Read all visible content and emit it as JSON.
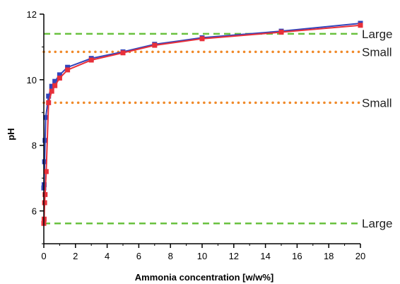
{
  "chart_data": {
    "type": "line",
    "title": "",
    "xlabel": "Ammonia concentration [w/w%]",
    "ylabel": "pH",
    "xlim": [
      0,
      20
    ],
    "ylim": [
      5,
      12
    ],
    "x_ticks": [
      "0",
      "2",
      "4",
      "6",
      "8",
      "10",
      "12",
      "14",
      "16",
      "18",
      "20"
    ],
    "y_ticks": [
      "6",
      "8",
      "10",
      "12"
    ],
    "grid": false,
    "series": [
      {
        "color": "#3344bb",
        "marker": "square",
        "points": [
          [
            0.0,
            6.7
          ],
          [
            0.02,
            6.8
          ],
          [
            0.05,
            7.5
          ],
          [
            0.08,
            8.15
          ],
          [
            0.12,
            8.85
          ],
          [
            0.3,
            9.5
          ],
          [
            0.5,
            9.8
          ],
          [
            0.7,
            9.95
          ],
          [
            1.0,
            10.15
          ],
          [
            1.5,
            10.38
          ],
          [
            3.0,
            10.65
          ],
          [
            5.0,
            10.85
          ],
          [
            7.0,
            11.08
          ],
          [
            10.0,
            11.28
          ],
          [
            15.0,
            11.48
          ],
          [
            20.0,
            11.72
          ]
        ]
      },
      {
        "color": "#e8303a",
        "marker": "square",
        "points": [
          [
            0.0,
            5.62
          ],
          [
            0.02,
            5.75
          ],
          [
            0.05,
            6.25
          ],
          [
            0.08,
            6.5
          ],
          [
            0.15,
            7.2
          ],
          [
            0.3,
            9.3
          ],
          [
            0.5,
            9.65
          ],
          [
            0.7,
            9.82
          ],
          [
            1.0,
            10.05
          ],
          [
            1.5,
            10.3
          ],
          [
            3.0,
            10.6
          ],
          [
            5.0,
            10.82
          ],
          [
            7.0,
            11.05
          ],
          [
            10.0,
            11.25
          ],
          [
            15.0,
            11.45
          ],
          [
            20.0,
            11.66
          ]
        ]
      }
    ],
    "reference_lines": [
      {
        "y": 11.4,
        "label": "Large",
        "style": "dashed",
        "color": "#6ac13f"
      },
      {
        "y": 10.85,
        "label": "Small",
        "style": "dotted",
        "color": "#f08a2a"
      },
      {
        "y": 9.3,
        "label": "Small",
        "style": "dotted",
        "color": "#f08a2a"
      },
      {
        "y": 5.62,
        "label": "Large",
        "style": "dashed",
        "color": "#6ac13f"
      }
    ]
  }
}
